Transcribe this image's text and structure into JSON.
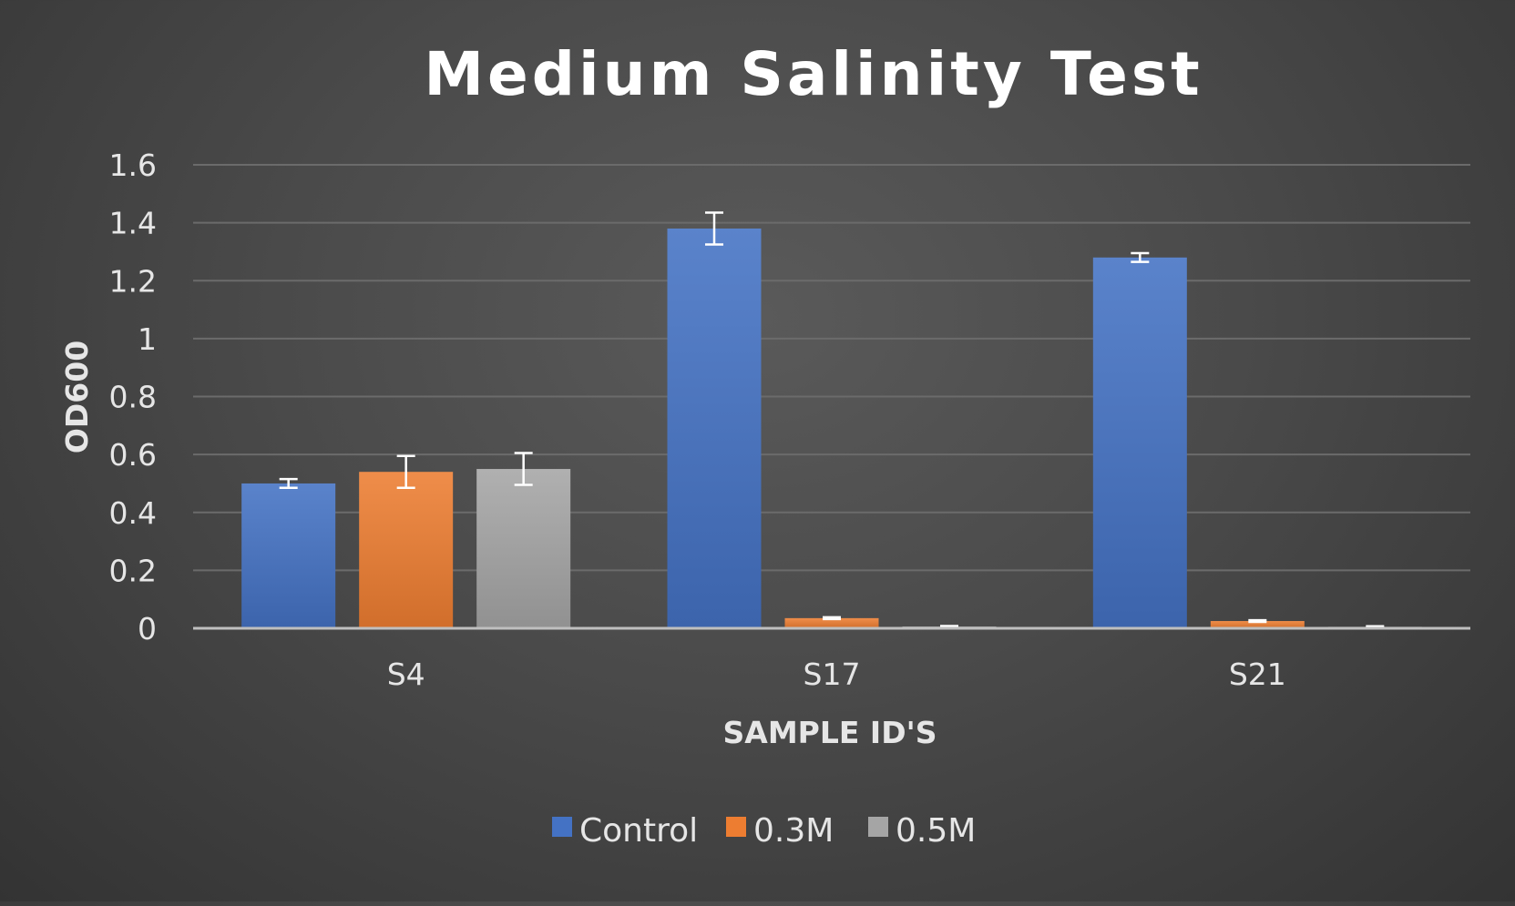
{
  "chart_data": {
    "type": "bar",
    "title": "Medium Salinity Test",
    "xlabel": "SAMPLE ID'S",
    "ylabel": "OD600",
    "categories": [
      "S4",
      "S17",
      "S21"
    ],
    "ylim": [
      0,
      1.6
    ],
    "yticks": [
      {
        "value": 0,
        "label": "0"
      },
      {
        "value": 0.2,
        "label": "0.2"
      },
      {
        "value": 0.4,
        "label": "0.4"
      },
      {
        "value": 0.6,
        "label": "0.6"
      },
      {
        "value": 0.8,
        "label": "0.8"
      },
      {
        "value": 1,
        "label": "1"
      },
      {
        "value": 1.2,
        "label": "1.2"
      },
      {
        "value": 1.4,
        "label": "1.4"
      },
      {
        "value": 1.6,
        "label": "1.6"
      }
    ],
    "series": [
      {
        "name": "Control",
        "color": "#4472c4",
        "values": [
          0.5,
          1.38,
          1.28
        ],
        "errors": [
          0.015,
          0.055,
          0.015
        ]
      },
      {
        "name": "0.3M",
        "color": "#ed7d31",
        "values": [
          0.54,
          0.035,
          0.025
        ],
        "errors": [
          0.055,
          0.003,
          0.003
        ]
      },
      {
        "name": "0.5M",
        "color": "#a5a5a5",
        "values": [
          0.55,
          0.006,
          0.005
        ],
        "errors": [
          0.055,
          0.002,
          0.002
        ]
      }
    ],
    "grid": true,
    "error_bars": true,
    "legend_position": "bottom",
    "background_color": "#454545",
    "gridline_color": "#6b6b6b",
    "axis_color": "#bfbfbf",
    "text_color": "#e6e6e6"
  }
}
